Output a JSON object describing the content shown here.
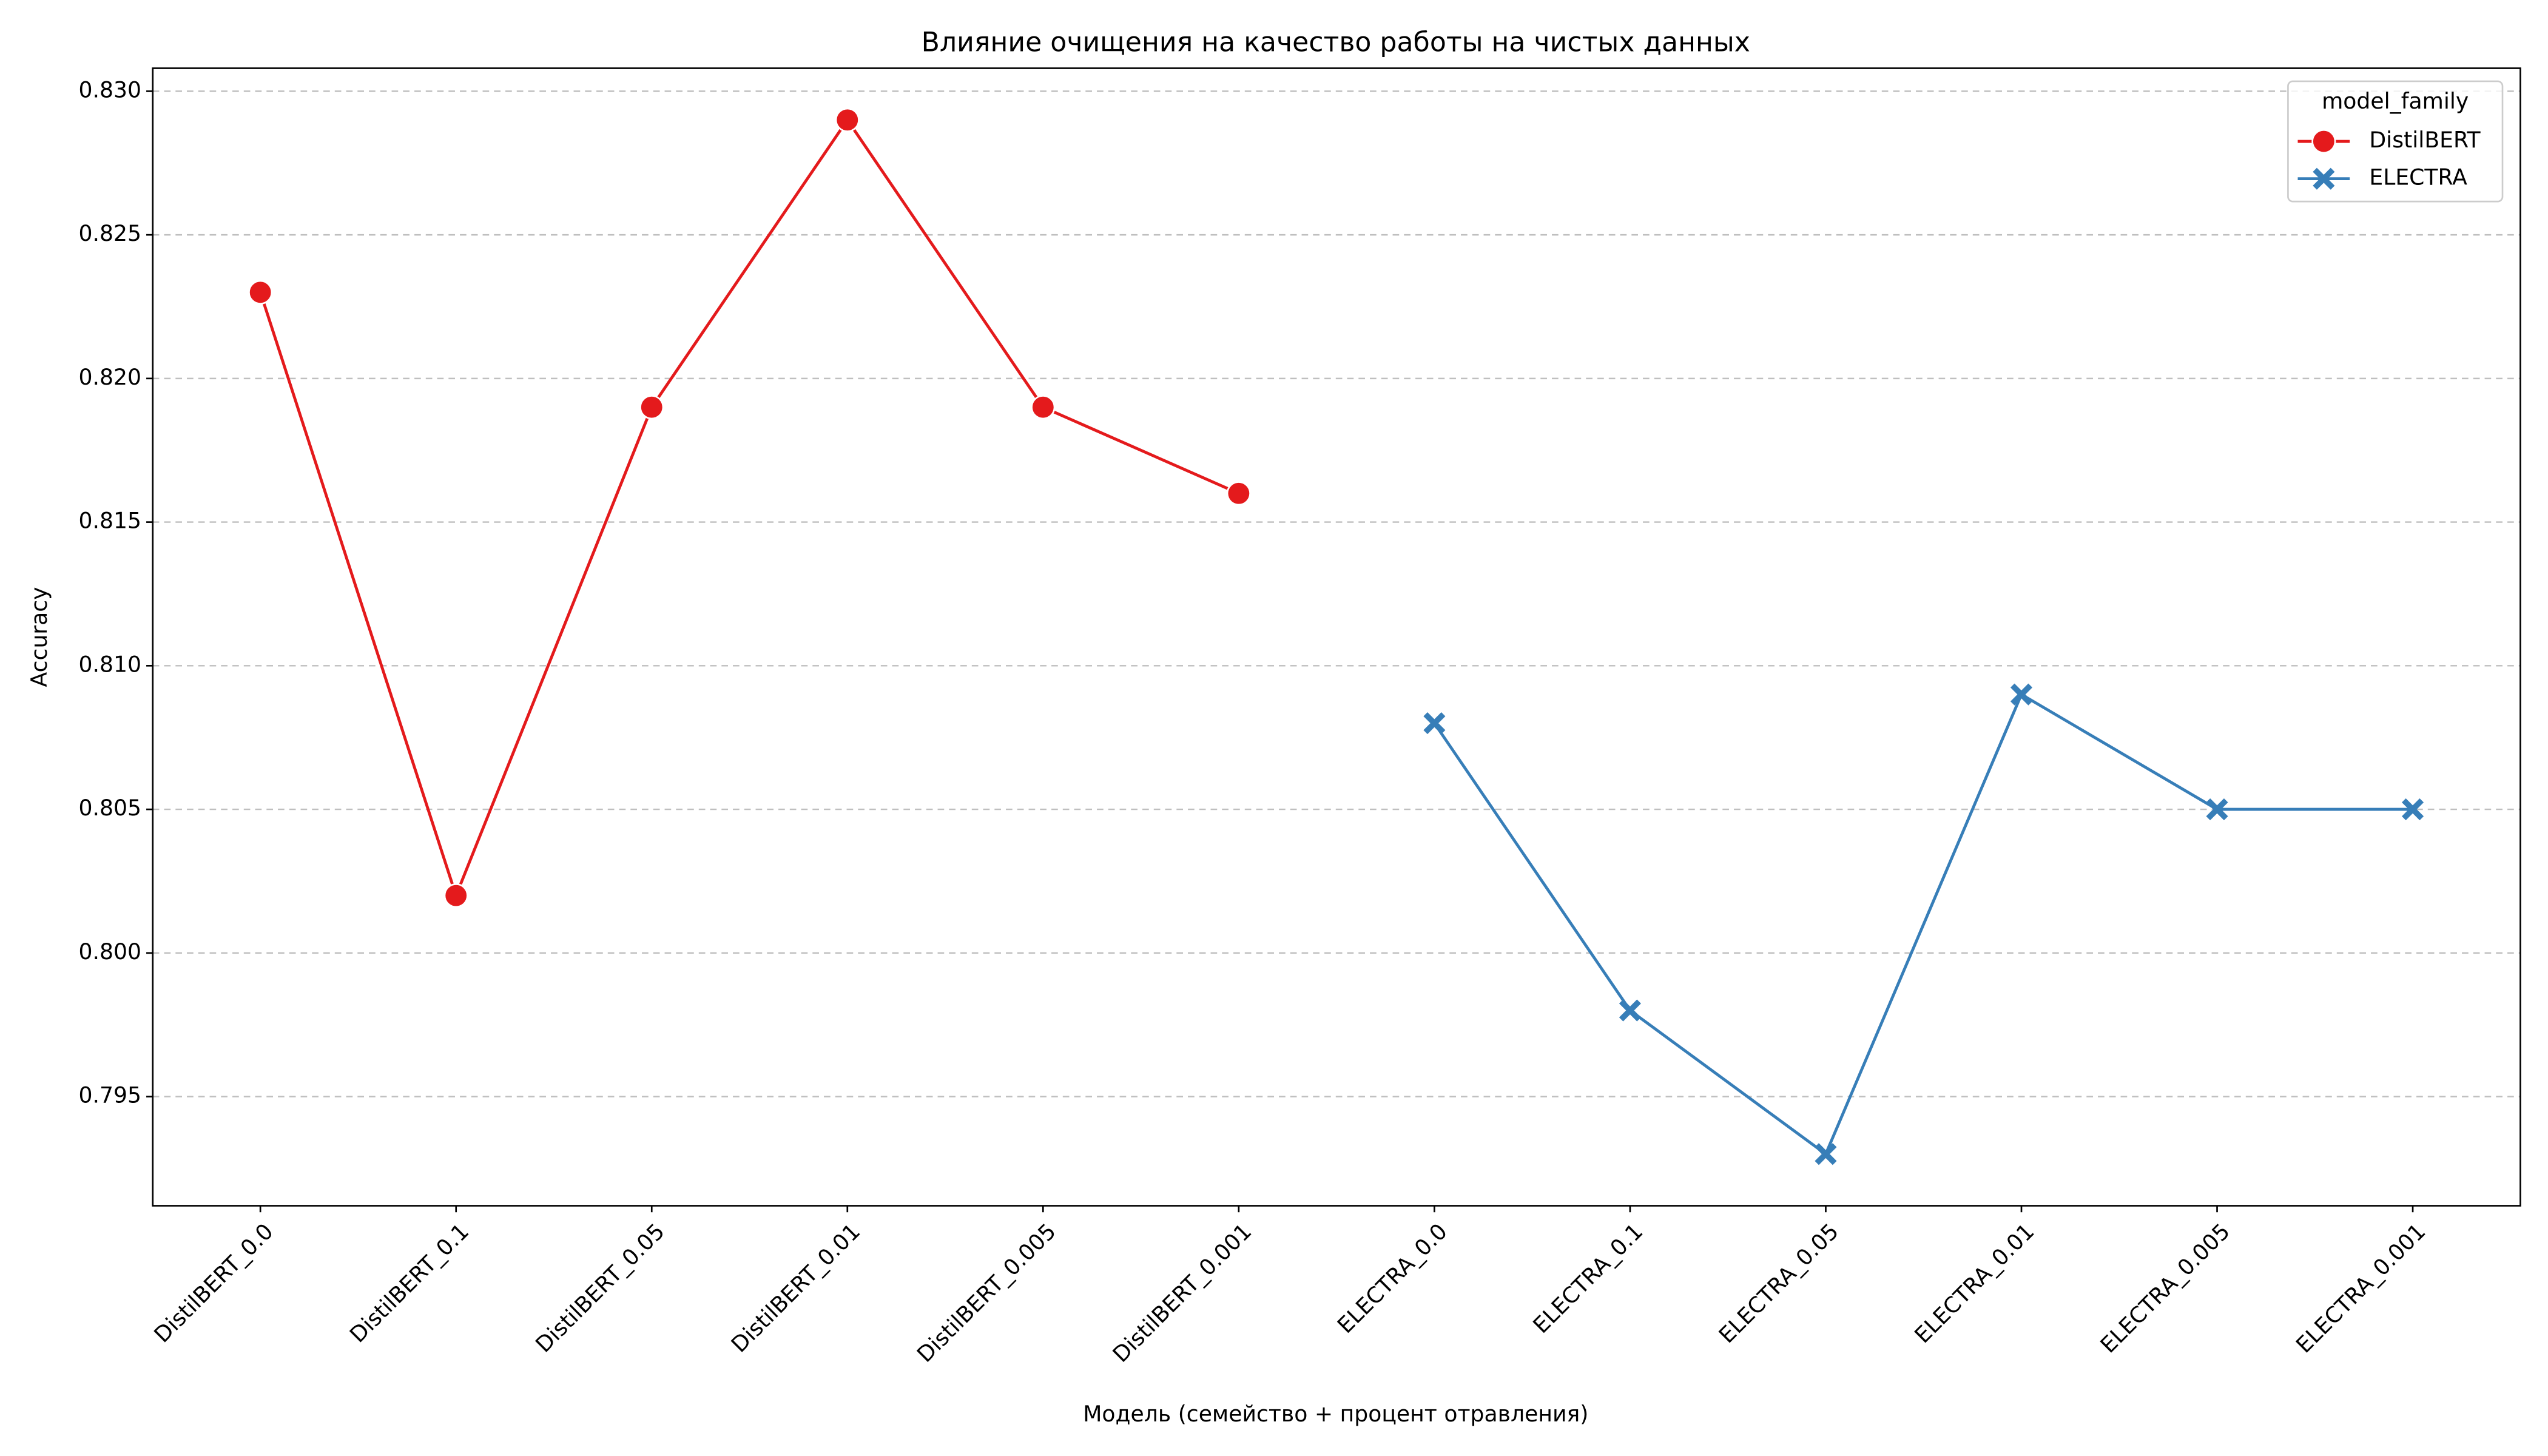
{
  "chart_data": {
    "type": "line",
    "title": "Влияние очищения на качество работы на чистых данных",
    "x_label": "Модель (семейство + процент отравления)",
    "y_label": "Accuracy",
    "categories": [
      "DistilBERT_0.0",
      "DistilBERT_0.1",
      "DistilBERT_0.05",
      "DistilBERT_0.01",
      "DistilBERT_0.005",
      "DistilBERT_0.001",
      "ELECTRA_0.0",
      "ELECTRA_0.1",
      "ELECTRA_0.05",
      "ELECTRA_0.01",
      "ELECTRA_0.005",
      "ELECTRA_0.001"
    ],
    "series": [
      {
        "name": "DistilBERT",
        "color": "#e41a1c",
        "marker": "circle",
        "values": [
          0.823,
          0.802,
          0.819,
          0.829,
          0.819,
          0.816,
          null,
          null,
          null,
          null,
          null,
          null
        ]
      },
      {
        "name": "ELECTRA",
        "color": "#377eb8",
        "marker": "x",
        "values": [
          null,
          null,
          null,
          null,
          null,
          null,
          0.808,
          0.798,
          0.793,
          0.809,
          0.805,
          0.805
        ]
      }
    ],
    "ylim": [
      0.7912,
      0.8308
    ],
    "yticks": [
      {
        "value": 0.795,
        "label": "0.795"
      },
      {
        "value": 0.8,
        "label": "0.800"
      },
      {
        "value": 0.805,
        "label": "0.805"
      },
      {
        "value": 0.81,
        "label": "0.810"
      },
      {
        "value": 0.815,
        "label": "0.815"
      },
      {
        "value": 0.82,
        "label": "0.820"
      },
      {
        "value": 0.825,
        "label": "0.825"
      },
      {
        "value": 0.83,
        "label": "0.830"
      }
    ],
    "grid": true,
    "legend_title": "model_family",
    "legend_position": "upper right"
  }
}
